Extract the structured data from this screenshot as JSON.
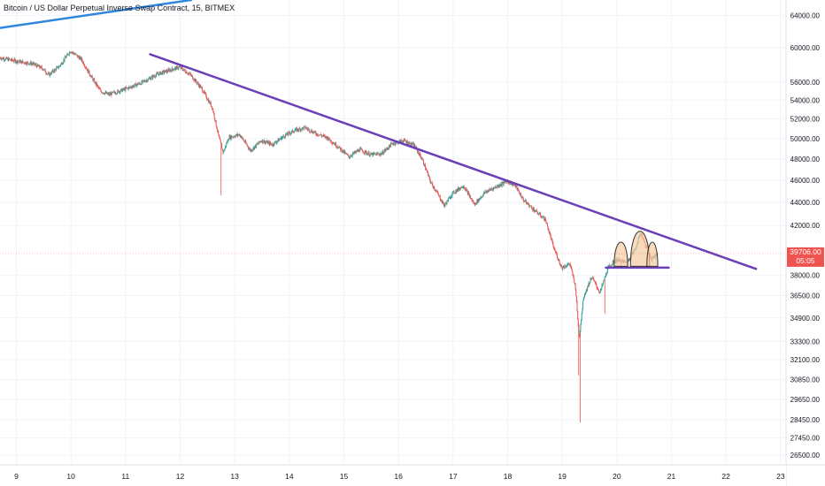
{
  "header": {
    "title": "Bitcoin / US Dollar Perpetual Inverse Swap Contract, 15, BITMEX"
  },
  "price_tag": {
    "price": "39706.00",
    "countdown": "05:05"
  },
  "colors": {
    "background": "#ffffff",
    "grid": "#f0f3fa",
    "up": "#26a69a",
    "down": "#ef5350",
    "trend_top": "#2e86de",
    "trend_purple": "#6a3fb8",
    "pattern_fill": "#f5cba0",
    "pattern_stroke": "#333333",
    "price_tag": "#ef5350",
    "axis_text": "#131722"
  },
  "chart_data": {
    "type": "candlestick",
    "title": "Bitcoin / US Dollar Perpetual Inverse Swap Contract, 15, BITMEX",
    "x_tick_labels": [
      "9",
      "10",
      "11",
      "12",
      "13",
      "14",
      "15",
      "16",
      "17",
      "18",
      "19",
      "20",
      "21",
      "22",
      "23"
    ],
    "x_range": [
      8.7,
      23.1
    ],
    "y_tick_labels": [
      "64000.00",
      "60000.00",
      "56000.00",
      "54000.00",
      "52000.00",
      "50000.00",
      "48000.00",
      "46000.00",
      "44000.00",
      "42000.00",
      "38000.00",
      "36500.00",
      "34900.00",
      "33300.00",
      "32100.00",
      "30850.00",
      "29650.00",
      "28450.00",
      "27450.00",
      "26500.00"
    ],
    "y_scale": "log",
    "y_range": [
      26000,
      66000
    ],
    "last_price": 39706,
    "price_path": [
      [
        8.7,
        58800
      ],
      [
        9.0,
        58400
      ],
      [
        9.3,
        58100
      ],
      [
        9.5,
        57500
      ],
      [
        9.6,
        56800
      ],
      [
        9.8,
        57800
      ],
      [
        10.0,
        59600
      ],
      [
        10.2,
        58600
      ],
      [
        10.4,
        56400
      ],
      [
        10.55,
        55000
      ],
      [
        10.7,
        54600
      ],
      [
        11.0,
        55200
      ],
      [
        11.3,
        55900
      ],
      [
        11.6,
        56900
      ],
      [
        11.8,
        57300
      ],
      [
        12.0,
        57700
      ],
      [
        12.2,
        56800
      ],
      [
        12.4,
        55300
      ],
      [
        12.6,
        53200
      ],
      [
        12.72,
        50100
      ],
      [
        12.8,
        48600
      ],
      [
        12.9,
        50100
      ],
      [
        13.1,
        50400
      ],
      [
        13.3,
        48800
      ],
      [
        13.5,
        49800
      ],
      [
        13.7,
        49400
      ],
      [
        13.9,
        50200
      ],
      [
        14.1,
        50800
      ],
      [
        14.3,
        51100
      ],
      [
        14.5,
        50500
      ],
      [
        14.7,
        50100
      ],
      [
        14.9,
        49200
      ],
      [
        15.1,
        48200
      ],
      [
        15.3,
        48900
      ],
      [
        15.5,
        48400
      ],
      [
        15.7,
        48500
      ],
      [
        15.9,
        49500
      ],
      [
        16.1,
        49800
      ],
      [
        16.3,
        49300
      ],
      [
        16.45,
        47900
      ],
      [
        16.6,
        45800
      ],
      [
        16.7,
        45000
      ],
      [
        16.85,
        43700
      ],
      [
        17.0,
        44800
      ],
      [
        17.2,
        45500
      ],
      [
        17.4,
        43800
      ],
      [
        17.6,
        44900
      ],
      [
        17.8,
        45400
      ],
      [
        18.0,
        45900
      ],
      [
        18.15,
        45500
      ],
      [
        18.3,
        44200
      ],
      [
        18.5,
        43300
      ],
      [
        18.7,
        42500
      ],
      [
        18.85,
        40200
      ],
      [
        19.0,
        38600
      ],
      [
        19.15,
        38900
      ],
      [
        19.25,
        37200
      ],
      [
        19.32,
        33500
      ],
      [
        19.4,
        36400
      ],
      [
        19.55,
        37900
      ],
      [
        19.7,
        36700
      ],
      [
        19.85,
        38600
      ],
      [
        20.0,
        39200
      ],
      [
        20.2,
        39000
      ],
      [
        20.35,
        40100
      ],
      [
        20.45,
        41400
      ],
      [
        20.55,
        40200
      ],
      [
        20.65,
        39300
      ],
      [
        20.75,
        39706
      ]
    ],
    "spikes_low": [
      [
        12.75,
        44600
      ],
      [
        19.33,
        28300
      ],
      [
        19.3,
        31100
      ],
      [
        19.78,
        35200
      ]
    ],
    "trendlines": [
      {
        "style": "blue",
        "points": [
          [
            8.7,
            62400
          ],
          [
            12.2,
            66000
          ]
        ]
      },
      {
        "style": "purple",
        "points": [
          [
            11.45,
            59200
          ],
          [
            22.55,
            38500
          ]
        ]
      },
      {
        "style": "purple-support",
        "points": [
          [
            19.8,
            38600
          ],
          [
            20.95,
            38600
          ]
        ]
      }
    ],
    "pattern": "triple-top",
    "pattern_base": 38700,
    "pattern_shoulders": [
      {
        "from": 19.95,
        "to": 20.2,
        "peak": 41000
      },
      {
        "from": 20.25,
        "to": 20.6,
        "peak": 42200
      },
      {
        "from": 20.55,
        "to": 20.75,
        "peak": 41000
      }
    ]
  }
}
